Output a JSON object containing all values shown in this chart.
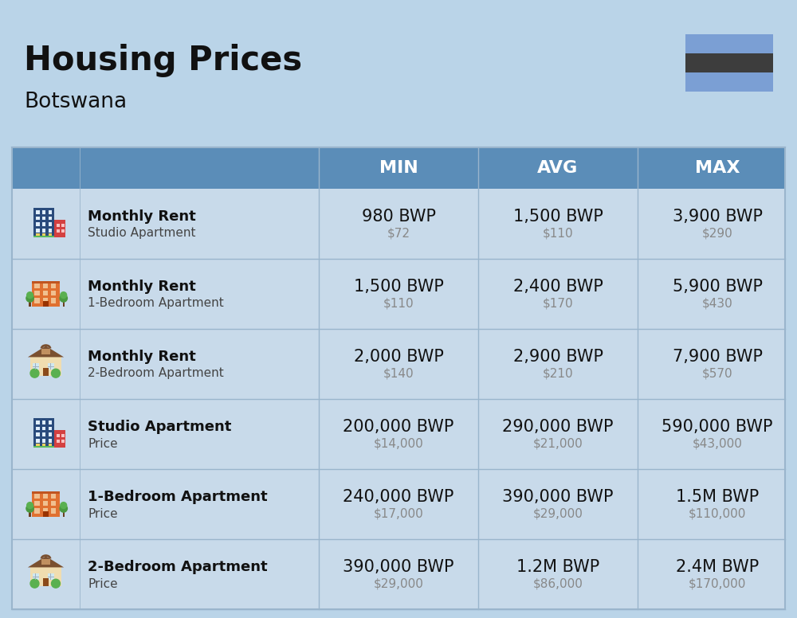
{
  "title": "Housing Prices",
  "subtitle": "Botswana",
  "background_color": "#bad4e8",
  "header_bg_color": "#5b8db8",
  "header_text_color": "#ffffff",
  "row_bg_color": "#c8daea",
  "col_header_labels": [
    "MIN",
    "AVG",
    "MAX"
  ],
  "rows": [
    {
      "icon_type": "city_blue",
      "label_bold": "Monthly Rent",
      "label_sub": "Studio Apartment",
      "min_bwp": "980 BWP",
      "min_usd": "$72",
      "avg_bwp": "1,500 BWP",
      "avg_usd": "$110",
      "max_bwp": "3,900 BWP",
      "max_usd": "$290"
    },
    {
      "icon_type": "apartment_orange",
      "label_bold": "Monthly Rent",
      "label_sub": "1-Bedroom Apartment",
      "min_bwp": "1,500 BWP",
      "min_usd": "$110",
      "avg_bwp": "2,400 BWP",
      "avg_usd": "$170",
      "max_bwp": "5,900 BWP",
      "max_usd": "$430"
    },
    {
      "icon_type": "house_beige",
      "label_bold": "Monthly Rent",
      "label_sub": "2-Bedroom Apartment",
      "min_bwp": "2,000 BWP",
      "min_usd": "$140",
      "avg_bwp": "2,900 BWP",
      "avg_usd": "$210",
      "max_bwp": "7,900 BWP",
      "max_usd": "$570"
    },
    {
      "icon_type": "city_blue",
      "label_bold": "Studio Apartment",
      "label_sub": "Price",
      "min_bwp": "200,000 BWP",
      "min_usd": "$14,000",
      "avg_bwp": "290,000 BWP",
      "avg_usd": "$21,000",
      "max_bwp": "590,000 BWP",
      "max_usd": "$43,000"
    },
    {
      "icon_type": "apartment_orange",
      "label_bold": "1-Bedroom Apartment",
      "label_sub": "Price",
      "min_bwp": "240,000 BWP",
      "min_usd": "$17,000",
      "avg_bwp": "390,000 BWP",
      "avg_usd": "$29,000",
      "max_bwp": "1.5M BWP",
      "max_usd": "$110,000"
    },
    {
      "icon_type": "house_beige",
      "label_bold": "2-Bedroom Apartment",
      "label_sub": "Price",
      "min_bwp": "390,000 BWP",
      "min_usd": "$29,000",
      "avg_bwp": "1.2M BWP",
      "avg_usd": "$86,000",
      "max_bwp": "2.4M BWP",
      "max_usd": "$170,000"
    }
  ],
  "flag_blue": "#7b9fd4",
  "flag_black": "#3d3d3d",
  "bwp_fontsize": 15,
  "usd_fontsize": 11,
  "label_bold_fontsize": 13,
  "label_sub_fontsize": 11
}
